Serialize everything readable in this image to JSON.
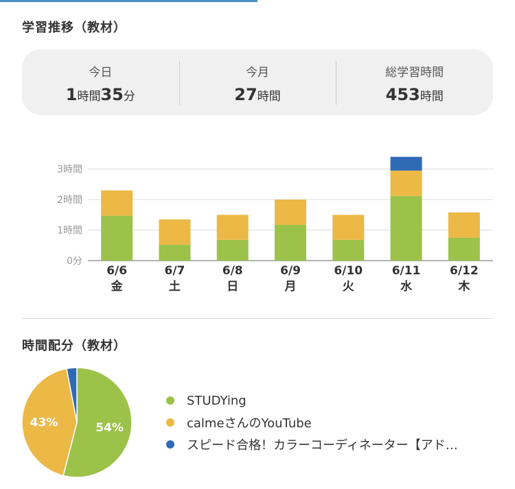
{
  "section1_title": "学習推移（教材）",
  "summary": [
    {
      "label": "今日",
      "parts": [
        {
          "t": "1",
          "n": true
        },
        {
          "t": "時間",
          "n": false
        },
        {
          "t": "35",
          "n": true
        },
        {
          "t": "分",
          "n": false
        }
      ]
    },
    {
      "label": "今月",
      "parts": [
        {
          "t": "27",
          "n": true
        },
        {
          "t": "時間",
          "n": false
        }
      ]
    },
    {
      "label": "総学習時間",
      "parts": [
        {
          "t": "453",
          "n": true
        },
        {
          "t": "時間",
          "n": false
        }
      ]
    }
  ],
  "colors": {
    "green": "#9cc24a",
    "orange": "#ecb846",
    "blue": "#2f6ab4"
  },
  "chart_data": [
    {
      "type": "bar",
      "stacked": true,
      "categories": [
        "6/6",
        "6/7",
        "6/8",
        "6/9",
        "6/10",
        "6/11",
        "6/12"
      ],
      "weekdays": [
        "金",
        "土",
        "日",
        "月",
        "火",
        "水",
        "木"
      ],
      "yticks": [
        {
          "value": 0,
          "label": "0分"
        },
        {
          "value": 1,
          "label": "1時間"
        },
        {
          "value": 2,
          "label": "2時間"
        },
        {
          "value": 3,
          "label": "3時間"
        }
      ],
      "ylim": [
        0,
        3.4
      ],
      "grid": true,
      "series": [
        {
          "name": "STUDYing",
          "color": "#9cc24a",
          "values": [
            1.47,
            0.52,
            0.68,
            1.17,
            0.68,
            2.12,
            0.75
          ]
        },
        {
          "name": "calmeさんのYouTube",
          "color": "#ecb846",
          "values": [
            0.83,
            0.83,
            0.82,
            0.83,
            0.82,
            0.83,
            0.83
          ]
        },
        {
          "name": "スピード合格！カラーコーディネーター【アド…",
          "color": "#2f6ab4",
          "values": [
            0,
            0,
            0,
            0,
            0,
            0.45,
            0
          ]
        }
      ]
    },
    {
      "type": "pie",
      "slices": [
        {
          "name": "STUDYing",
          "value": 54,
          "label": "54%",
          "color": "#9cc24a"
        },
        {
          "name": "calmeさんのYouTube",
          "value": 43,
          "label": "43%",
          "color": "#ecb846"
        },
        {
          "name": "スピード合格！カラーコーディネーター【アド…",
          "value": 3,
          "label": "",
          "color": "#2f6ab4"
        }
      ]
    }
  ],
  "section2_title": "時間配分（教材）",
  "legend": [
    {
      "label": "STUDYing",
      "color": "#9cc24a"
    },
    {
      "label": "calmeさんのYouTube",
      "color": "#ecb846"
    },
    {
      "label": "スピード合格！カラーコーディネーター【アド…",
      "color": "#2f6ab4"
    }
  ]
}
